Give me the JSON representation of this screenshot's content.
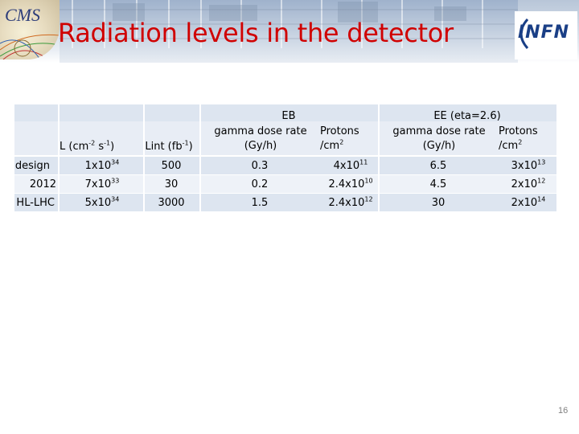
{
  "slide": {
    "title": "Radiation levels in the detector",
    "cms_logo_text": "CMS",
    "infn_logo_text": "INFN",
    "page_number": "16"
  },
  "table": {
    "header": {
      "eb_group": "EB",
      "ee_group": "EE (eta=2.6)",
      "lumi": {
        "base": "L (cm",
        "exp1": "-2",
        "mid": " s",
        "exp2": "-1",
        "end": ")"
      },
      "lint": {
        "base": "Lint (fb",
        "exp": "-1",
        "end": ")"
      },
      "eb_dose": [
        "gamma dose rate",
        "(Gy/h)"
      ],
      "eb_protons": {
        "line1": "Protons",
        "base": "/cm",
        "exp": "2"
      },
      "ee_dose": [
        "gamma dose rate",
        "(Gy/h)"
      ],
      "ee_protons": {
        "line1": "Protons",
        "base": "/cm",
        "exp": "2"
      }
    },
    "rows": [
      {
        "label": "design",
        "lumi": {
          "base": "1x10",
          "exp": "34"
        },
        "lint": "500",
        "eb_dose": "0.3",
        "eb_protons": {
          "base": "4x10",
          "exp": "11"
        },
        "ee_dose": "6.5",
        "ee_protons": {
          "base": "3x10",
          "exp": "13"
        }
      },
      {
        "label": "2012",
        "lumi": {
          "base": "7x10",
          "exp": "33"
        },
        "lint": "30",
        "eb_dose": "0.2",
        "eb_protons": {
          "base": "2.4x10",
          "exp": "10"
        },
        "ee_dose": "4.5",
        "ee_protons": {
          "base": "2x10",
          "exp": "12"
        }
      },
      {
        "label": "HL-LHC",
        "lumi": {
          "base": "5x10",
          "exp": "34"
        },
        "lint": "3000",
        "eb_dose": "1.5",
        "eb_protons": {
          "base": "2.4x10",
          "exp": "12"
        },
        "ee_dose": "30",
        "ee_protons": {
          "base": "2x10",
          "exp": "14"
        }
      }
    ]
  },
  "colors": {
    "title": "#d00000",
    "row_band": "#dde5f0",
    "infn": "#1a3f86"
  }
}
